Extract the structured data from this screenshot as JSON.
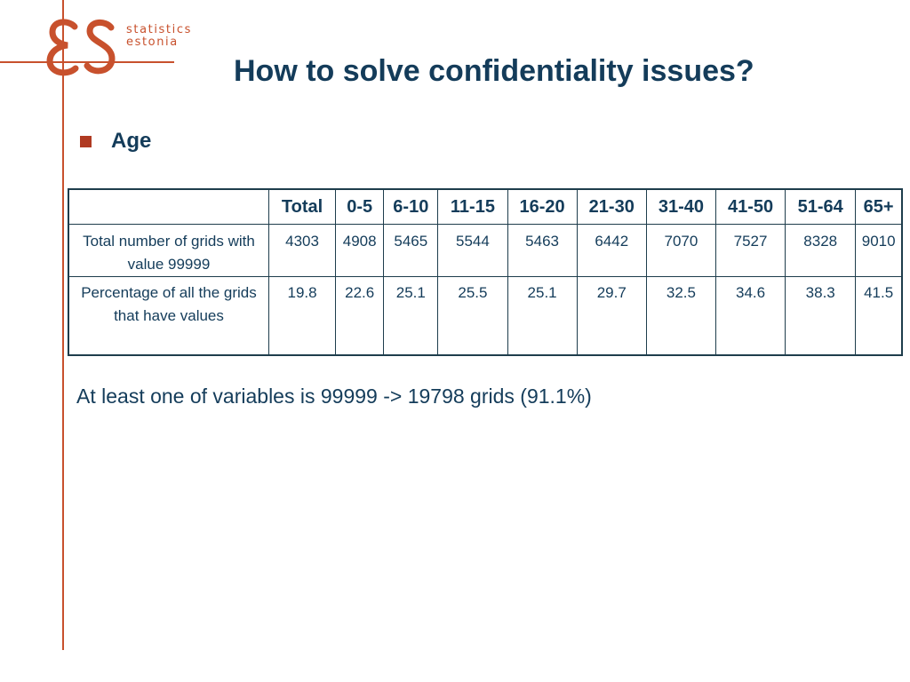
{
  "logo": {
    "line1": "statistics",
    "line2": "estonia",
    "brand_color": "#c8512d",
    "icon": "es-monogram-icon"
  },
  "title": "How to solve confidentiality issues?",
  "bullet": {
    "text": "Age",
    "color": "#b03a22"
  },
  "table": {
    "headers": [
      "",
      "Total",
      "0-5",
      "6-10",
      "11-15",
      "16-20",
      "21-30",
      "31-40",
      "41-50",
      "51-64",
      "65+"
    ],
    "rows": [
      {
        "label": "Total number of grids with value 99999",
        "values": [
          "4303",
          "4908",
          "5465",
          "5544",
          "5463",
          "6442",
          "7070",
          "7527",
          "8328",
          "9010"
        ]
      },
      {
        "label": "Percentage of all the grids that have values",
        "values": [
          "19.8",
          "22.6",
          "25.1",
          "25.5",
          "25.1",
          "29.7",
          "32.5",
          "34.6",
          "38.3",
          "41.5"
        ]
      }
    ]
  },
  "note": "At least one of variables is 99999 -> 19798 grids (91.1%)",
  "colors": {
    "text": "#143c5a",
    "border": "#1e3d4c",
    "accent": "#c8512d"
  }
}
